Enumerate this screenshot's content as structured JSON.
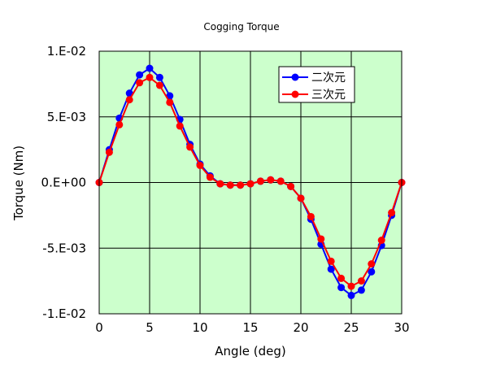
{
  "chart_data": {
    "type": "line",
    "title": "Cogging Torque",
    "xlabel": "Angle (deg)",
    "ylabel": "Torque (Nm)",
    "xlim": [
      0,
      30
    ],
    "ylim": [
      -0.01,
      0.01
    ],
    "x_ticks": [
      0,
      5,
      10,
      15,
      20,
      25,
      30
    ],
    "x_tick_labels": [
      "0",
      "5",
      "10",
      "15",
      "20",
      "25",
      "30"
    ],
    "y_ticks": [
      0.01,
      0.005,
      0,
      -0.005,
      -0.01
    ],
    "y_tick_labels": [
      "1.E-02",
      "5.E-03",
      "0.E+00",
      "-5.E-03",
      "-1.E-02"
    ],
    "grid": true,
    "plot_background": "#ccffcc",
    "legend_position": "top-right",
    "x": [
      0,
      1,
      2,
      3,
      4,
      5,
      6,
      7,
      8,
      9,
      10,
      11,
      12,
      13,
      14,
      15,
      16,
      17,
      18,
      19,
      20,
      21,
      22,
      23,
      24,
      25,
      26,
      27,
      28,
      29,
      30
    ],
    "series": [
      {
        "name": "二次元",
        "color": "#0000ff",
        "values": [
          0,
          0.0025,
          0.0049,
          0.0068,
          0.0082,
          0.0087,
          0.008,
          0.0066,
          0.0048,
          0.0029,
          0.0014,
          0.0005,
          -0.0001,
          -0.0002,
          -0.0002,
          -0.0001,
          0.0001,
          0.0002,
          0.0001,
          -0.0003,
          -0.0012,
          -0.0028,
          -0.0047,
          -0.0066,
          -0.008,
          -0.0086,
          -0.0082,
          -0.0068,
          -0.0048,
          -0.0025,
          0
        ]
      },
      {
        "name": "三次元",
        "color": "#ff0000",
        "values": [
          0,
          0.0023,
          0.0044,
          0.0063,
          0.0076,
          0.008,
          0.0074,
          0.0061,
          0.0043,
          0.0027,
          0.0013,
          0.0004,
          -0.0001,
          -0.0002,
          -0.0002,
          -0.0001,
          0.0001,
          0.0002,
          0.0001,
          -0.0003,
          -0.0012,
          -0.0026,
          -0.0043,
          -0.006,
          -0.0073,
          -0.0079,
          -0.0075,
          -0.0062,
          -0.0044,
          -0.0023,
          0
        ]
      }
    ]
  }
}
